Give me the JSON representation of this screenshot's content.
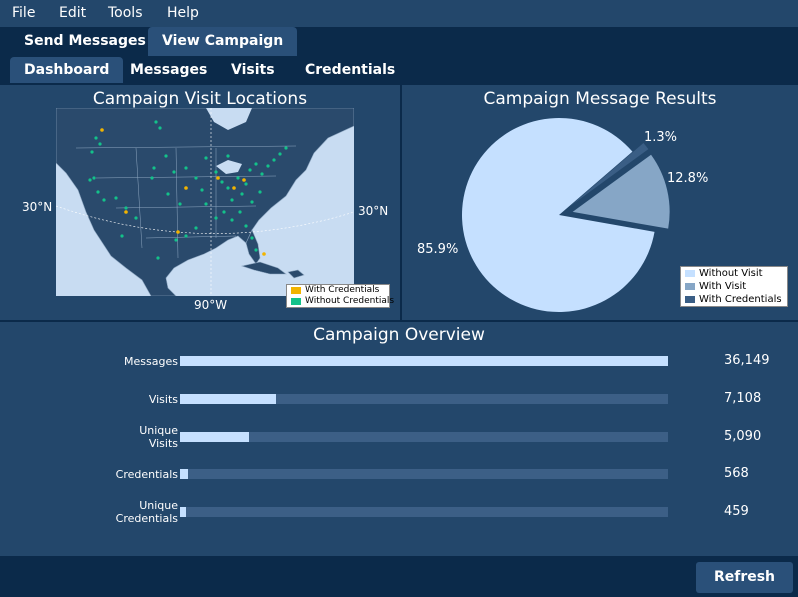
{
  "menu": {
    "file": "File",
    "edit": "Edit",
    "tools": "Tools",
    "help": "Help"
  },
  "tabs_primary": [
    "Send Messages",
    "View Campaign"
  ],
  "tabs_secondary": [
    "Dashboard",
    "Messages",
    "Visits",
    "Credentials"
  ],
  "map_panel": {
    "title": "Campaign Visit Locations",
    "lat_label_left": "30°N",
    "lat_label_right": "30°N",
    "lon_label": "90°W",
    "legend": [
      "With Credentials",
      "Without Credentials"
    ],
    "legend_colors": [
      "#f2b400",
      "#13c28a"
    ]
  },
  "pie_panel": {
    "title": "Campaign Message Results",
    "labels": [
      "1.3%",
      "12.8%",
      "85.9%"
    ],
    "legend": [
      "Without Visit",
      "With Visit",
      "With Credentials"
    ],
    "colors": [
      "#c5e0ff",
      "#86a6c6",
      "#3a5e85"
    ]
  },
  "overview": {
    "title": "Campaign Overview",
    "rows": [
      {
        "label_line1": "Messages",
        "label_line2": "",
        "value": "36,149",
        "fraction": 1.0
      },
      {
        "label_line1": "Visits",
        "label_line2": "",
        "value": "7,108",
        "fraction": 0.197
      },
      {
        "label_line1": "Unique",
        "label_line2": "Visits",
        "value": "5,090",
        "fraction": 0.141
      },
      {
        "label_line1": "Credentials",
        "label_line2": "",
        "value": "568",
        "fraction": 0.016
      },
      {
        "label_line1": "Unique",
        "label_line2": "Credentials",
        "value": "459",
        "fraction": 0.013
      }
    ]
  },
  "refresh_label": "Refresh",
  "chart_data": [
    {
      "type": "pie",
      "title": "Campaign Message Results",
      "categories": [
        "Without Visit",
        "With Visit",
        "With Credentials"
      ],
      "values": [
        85.9,
        12.8,
        1.3
      ]
    },
    {
      "type": "bar",
      "title": "Campaign Overview",
      "categories": [
        "Messages",
        "Visits",
        "Unique Visits",
        "Credentials",
        "Unique Credentials"
      ],
      "values": [
        36149,
        7108,
        5090,
        568,
        459
      ]
    }
  ]
}
